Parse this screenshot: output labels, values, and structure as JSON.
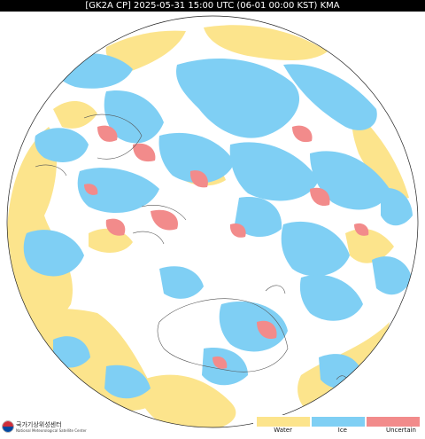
{
  "title": "[GK2A CP] 2025-05-31 15:00 UTC (06-01 00:00 KST) KMA",
  "legend": {
    "items": [
      {
        "label": "Water",
        "color": "#fce48c"
      },
      {
        "label": "Ice",
        "color": "#7fcff4"
      },
      {
        "label": "Uncertain",
        "color": "#f28b8b"
      }
    ]
  },
  "agency": {
    "name_ko": "국가기상위성센터",
    "name_en": "National Meteorological Satellite Center"
  },
  "colors": {
    "water": "#fce48c",
    "ice": "#7fcff4",
    "uncertain": "#f28b8b",
    "clear": "#ffffff",
    "coastline": "#555555"
  }
}
